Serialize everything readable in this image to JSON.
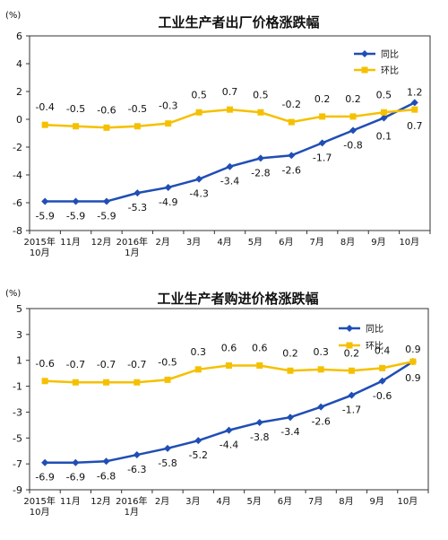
{
  "chart_data": [
    {
      "type": "line",
      "title": "工业生产者出厂价格涨跌幅",
      "unit_label": "(%)",
      "categories": [
        [
          "2015年",
          "10月"
        ],
        [
          "11月"
        ],
        [
          "12月"
        ],
        [
          "2016年",
          "1月"
        ],
        [
          "2月"
        ],
        [
          "3月"
        ],
        [
          "4月"
        ],
        [
          "5月"
        ],
        [
          "6月"
        ],
        [
          "7月"
        ],
        [
          "8月"
        ],
        [
          "9月"
        ],
        [
          "10月"
        ]
      ],
      "ylim": [
        -8,
        6
      ],
      "yticks": [
        "6",
        "4",
        "2",
        "0",
        "-2",
        "-4",
        "-6",
        "-8"
      ],
      "legend_position": "top-right",
      "series": [
        {
          "name": "同比",
          "color": "#1f4eb5",
          "marker": "diamond",
          "values": [
            -5.9,
            -5.9,
            -5.9,
            -5.3,
            -4.9,
            -4.3,
            -3.4,
            -2.8,
            -2.6,
            -1.7,
            -0.8,
            0.1,
            1.2
          ],
          "labels": [
            "-5.9",
            "-5.9",
            "-5.9",
            "-5.3",
            "-4.9",
            "-4.3",
            "-3.4",
            "-2.8",
            "-2.6",
            "-1.7",
            "-0.8",
            "0.1",
            "1.2"
          ]
        },
        {
          "name": "环比",
          "color": "#f5c000",
          "marker": "square",
          "values": [
            -0.4,
            -0.5,
            -0.6,
            -0.5,
            -0.3,
            0.5,
            0.7,
            0.5,
            -0.2,
            0.2,
            0.2,
            0.5,
            0.7
          ],
          "labels": [
            "-0.4",
            "-0.5",
            "-0.6",
            "-0.5",
            "-0.3",
            "0.5",
            "0.7",
            "0.5",
            "-0.2",
            "0.2",
            "0.2",
            "0.5",
            "0.7"
          ]
        }
      ]
    },
    {
      "type": "line",
      "title": "工业生产者购进价格涨跌幅",
      "unit_label": "(%)",
      "categories": [
        [
          "2015年",
          "10月"
        ],
        [
          "11月"
        ],
        [
          "12月"
        ],
        [
          "2016年",
          "1月"
        ],
        [
          "2月"
        ],
        [
          "3月"
        ],
        [
          "4月"
        ],
        [
          "5月"
        ],
        [
          "6月"
        ],
        [
          "7月"
        ],
        [
          "8月"
        ],
        [
          "9月"
        ],
        [
          "10月"
        ]
      ],
      "ylim": [
        -9,
        5
      ],
      "yticks": [
        "5",
        "3",
        "1",
        "-1",
        "-3",
        "-5",
        "-7",
        "-9"
      ],
      "legend_position": "top-right",
      "series": [
        {
          "name": "同比",
          "color": "#1f4eb5",
          "marker": "diamond",
          "values": [
            -6.9,
            -6.9,
            -6.8,
            -6.3,
            -5.8,
            -5.2,
            -4.4,
            -3.8,
            -3.4,
            -2.6,
            -1.7,
            -0.6,
            0.9
          ],
          "labels": [
            "-6.9",
            "-6.9",
            "-6.8",
            "-6.3",
            "-5.8",
            "-5.2",
            "-4.4",
            "-3.8",
            "-3.4",
            "-2.6",
            "-1.7",
            "-0.6",
            "0.9"
          ]
        },
        {
          "name": "环比",
          "color": "#f5c000",
          "marker": "square",
          "values": [
            -0.6,
            -0.7,
            -0.7,
            -0.7,
            -0.5,
            0.3,
            0.6,
            0.6,
            0.2,
            0.3,
            0.2,
            0.4,
            0.9
          ],
          "labels": [
            "-0.6",
            "-0.7",
            "-0.7",
            "-0.7",
            "-0.5",
            "0.3",
            "0.6",
            "0.6",
            "0.2",
            "0.3",
            "0.2",
            "0.4",
            "0.9"
          ]
        }
      ]
    }
  ]
}
